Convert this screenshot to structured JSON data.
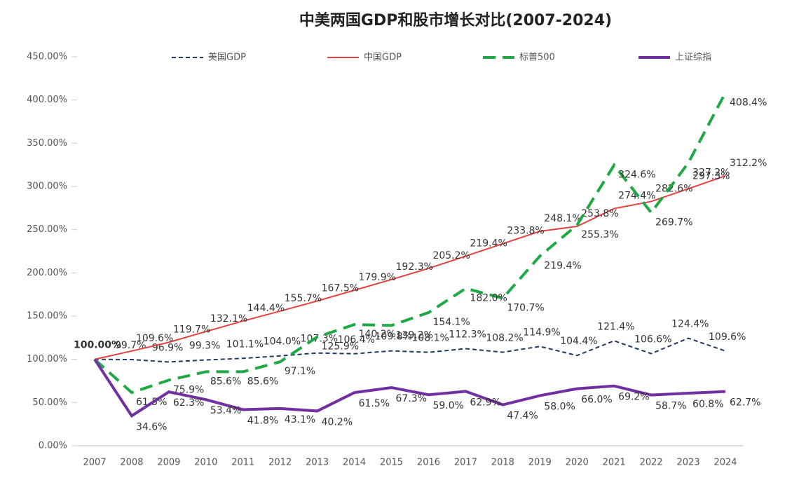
{
  "chart_data": {
    "type": "line",
    "title": "中美两国GDP和股市增长对比(2007-2024)",
    "categories": [
      "2007",
      "2008",
      "2009",
      "2010",
      "2011",
      "2012",
      "2013",
      "2014",
      "2015",
      "2016",
      "2017",
      "2018",
      "2019",
      "2020",
      "2021",
      "2022",
      "2023",
      "2024"
    ],
    "ylim": [
      0,
      450
    ],
    "yticks": [
      {
        "value": 0,
        "label": "0.00%"
      },
      {
        "value": 50,
        "label": "50.00%"
      },
      {
        "value": 100,
        "label": "100.00%"
      },
      {
        "value": 150,
        "label": "150.00%"
      },
      {
        "value": 200,
        "label": "200.00%"
      },
      {
        "value": 250,
        "label": "250.00%"
      },
      {
        "value": 300,
        "label": "300.00%"
      },
      {
        "value": 350,
        "label": "350.00%"
      },
      {
        "value": 400,
        "label": "400.00%"
      },
      {
        "value": 450,
        "label": "450.00%"
      }
    ],
    "legend": "top",
    "series": [
      {
        "name": "美国GDP",
        "color": "#1f3864",
        "dash": "dashed",
        "values": [
          100,
          99.7,
          96.9,
          99.3,
          101.1,
          104.0,
          107.3,
          106.4,
          109.8,
          108.1,
          112.3,
          108.2,
          114.9,
          104.4,
          121.4,
          106.6,
          124.4,
          109.6
        ],
        "value_labels": [
          "100.00%",
          "99.7%",
          "96.9%",
          "99.3%",
          "101.1%",
          "104.0%",
          "107.3%",
          "106.4%",
          "109.8%",
          "108.1%",
          "112.3%",
          "108.2%",
          "114.9%",
          "104.4%",
          "121.4%",
          "106.6%",
          "124.4%",
          "109.6%"
        ]
      },
      {
        "name": "中国GDP",
        "color": "#e8403f",
        "dash": "solid",
        "values": [
          100,
          109.6,
          119.7,
          132.1,
          144.4,
          155.7,
          167.5,
          179.9,
          192.3,
          205.2,
          219.4,
          233.8,
          248.1,
          253.8,
          274.4,
          282.6,
          297.3,
          312.2
        ],
        "value_labels": [
          null,
          "109.6%",
          "119.7%",
          "132.1%",
          "144.4%",
          "155.7%",
          "167.5%",
          "179.9%",
          "192.3%",
          "205.2%",
          "219.4%",
          "233.8%",
          "248.1%",
          "253.8%",
          "274.4%",
          "282.6%",
          "297.3%",
          "312.2%"
        ]
      },
      {
        "name": "标普500",
        "color": "#1fa845",
        "dash": "longdash",
        "values": [
          100,
          61.5,
          75.9,
          85.6,
          85.6,
          97.1,
          125.9,
          140.2,
          139.2,
          154.1,
          182.0,
          170.7,
          219.4,
          255.3,
          324.6,
          269.7,
          327.2,
          408.4
        ],
        "value_labels": [
          null,
          "61.5%",
          "75.9%",
          "85.6%",
          "85.6%",
          "97.1%",
          "125.9%",
          "140.2%",
          "139.2%",
          "154.1%",
          "182.0%",
          "170.7%",
          "219.4%",
          "255.3%",
          "324.6%",
          "269.7%",
          "327.2%",
          "408.4%"
        ]
      },
      {
        "name": "上证综指",
        "color": "#7030a0",
        "dash": "solid",
        "values": [
          100,
          34.6,
          62.3,
          53.4,
          41.8,
          43.1,
          40.2,
          61.5,
          67.3,
          59.0,
          62.9,
          47.4,
          58.0,
          66.0,
          69.2,
          58.7,
          60.8,
          62.7
        ],
        "value_labels": [
          null,
          "34.6%",
          "62.3%",
          "53.4%",
          "41.8%",
          "43.1%",
          "40.2%",
          "61.5%",
          "67.3%",
          "59.0%",
          "62.9%",
          "47.4%",
          "58.0%",
          "66.0%",
          "69.2%",
          "58.7%",
          "60.8%",
          "62.7%"
        ]
      }
    ]
  }
}
